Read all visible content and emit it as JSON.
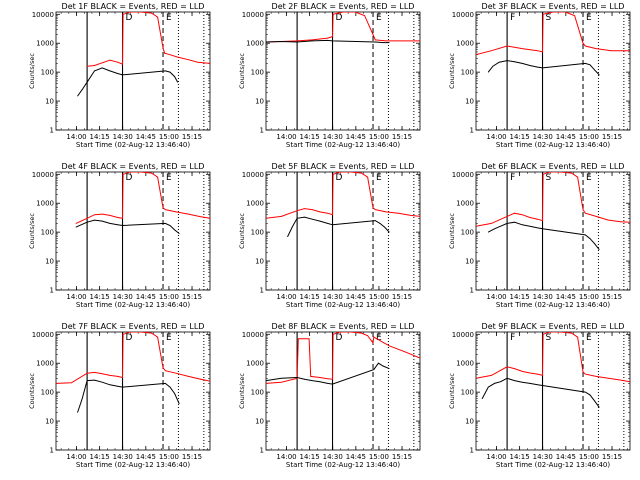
{
  "figure": {
    "xlabel": "Start Time (02-Aug-12 13:46:40)",
    "ylabel": "Counts/sec",
    "x_tick_labels": [
      "14:00",
      "14:15",
      "14:30",
      "14:45",
      "15:00",
      "15:15"
    ],
    "y_tick_labels": [
      "1",
      "10",
      "100",
      "1000",
      "10000"
    ],
    "series_colors": {
      "Events": "#000000",
      "LLD": "#ff0000"
    },
    "legend_note": "BLACK = Events, RED = LLD"
  },
  "chart_data": [
    {
      "type": "line",
      "title": "Det 1F BLACK = Events, RED = LLD",
      "interval_labels": [
        "D",
        "E"
      ],
      "solid_lines_min": [
        20.2,
        43.2
      ],
      "dashed_lines_min": [
        69.5
      ],
      "dotted_lines_min": [
        79.5,
        96.0
      ],
      "xlim_min": [
        0,
        100
      ],
      "ylim": [
        1,
        12000
      ],
      "yscale": "log",
      "series": [
        {
          "name": "LLD",
          "color": "#ff0000",
          "x": [
            20.2,
            25,
            30,
            35,
            40,
            43.2,
            43.6,
            48,
            55,
            62,
            66,
            69.5,
            70.5,
            74,
            79,
            86,
            92,
            100
          ],
          "y": [
            160,
            170,
            210,
            260,
            220,
            190,
            10000,
            12000,
            12000,
            11000,
            8000,
            700,
            450,
            400,
            330,
            270,
            220,
            200
          ]
        },
        {
          "name": "Events",
          "color": "#000000",
          "x": [
            14,
            17,
            20.2,
            25,
            30,
            35,
            40,
            43.2,
            71,
            74,
            77,
            79
          ],
          "y": [
            15,
            25,
            45,
            110,
            140,
            110,
            90,
            80,
            110,
            100,
            70,
            45
          ]
        }
      ]
    },
    {
      "type": "line",
      "title": "Det 2F BLACK = Events, RED = LLD",
      "interval_labels": [
        "D",
        "E"
      ],
      "solid_lines_min": [
        20.2,
        43.2
      ],
      "dashed_lines_min": [
        69.5
      ],
      "dotted_lines_min": [
        79.5,
        96.0
      ],
      "xlim_min": [
        0,
        100
      ],
      "ylim": [
        1,
        12000
      ],
      "yscale": "log",
      "series": [
        {
          "name": "LLD",
          "color": "#ff0000",
          "x": [
            0,
            10,
            20.2,
            30,
            40,
            43.2,
            43.6,
            50,
            58,
            64,
            69.5,
            71,
            78,
            88,
            100
          ],
          "y": [
            1100,
            1150,
            1200,
            1300,
            1500,
            1700,
            10000,
            12000,
            12000,
            9000,
            2000,
            1300,
            1200,
            1200,
            1200
          ]
        },
        {
          "name": "Events",
          "color": "#000000",
          "x": [
            0,
            10,
            20.2,
            30,
            40,
            43.2,
            71,
            76,
            80
          ],
          "y": [
            1100,
            1150,
            1100,
            1200,
            1250,
            1200,
            1100,
            1050,
            1050
          ]
        }
      ]
    },
    {
      "type": "line",
      "title": "Det 3F BLACK = Events, RED = LLD",
      "interval_labels": [
        "F",
        "S",
        "E"
      ],
      "solid_lines_min": [
        20.2,
        43.2
      ],
      "dashed_lines_min": [
        69.5
      ],
      "dotted_lines_min": [
        79.5,
        96.0
      ],
      "xlim_min": [
        0,
        100
      ],
      "ylim": [
        1,
        12000
      ],
      "yscale": "log",
      "series": [
        {
          "name": "LLD",
          "color": "#ff0000",
          "x": [
            0,
            10,
            20.2,
            30,
            40,
            43.2,
            43.6,
            50,
            58,
            64,
            69.5,
            71,
            78,
            88,
            100
          ],
          "y": [
            400,
            550,
            800,
            650,
            550,
            500,
            10000,
            12000,
            12000,
            9000,
            1000,
            800,
            650,
            550,
            550
          ]
        },
        {
          "name": "Events",
          "color": "#000000",
          "x": [
            8,
            11,
            15,
            20.2,
            25,
            30,
            35,
            40,
            43.2,
            71,
            74,
            77,
            80
          ],
          "y": [
            100,
            160,
            220,
            250,
            230,
            200,
            170,
            150,
            140,
            200,
            180,
            120,
            80
          ]
        }
      ]
    },
    {
      "type": "line",
      "title": "Det 4F BLACK = Events, RED = LLD",
      "interval_labels": [
        "D",
        "E"
      ],
      "solid_lines_min": [
        20.2,
        43.2
      ],
      "dashed_lines_min": [
        69.5
      ],
      "dotted_lines_min": [
        79.5,
        96.0
      ],
      "xlim_min": [
        0,
        100
      ],
      "ylim": [
        1,
        12000
      ],
      "yscale": "log",
      "series": [
        {
          "name": "LLD",
          "color": "#ff0000",
          "x": [
            13,
            20.2,
            25,
            30,
            35,
            40,
            43.2,
            43.6,
            48,
            55,
            62,
            66,
            69.5,
            71,
            78,
            86,
            94,
            100
          ],
          "y": [
            200,
            300,
            400,
            420,
            380,
            320,
            300,
            10000,
            12000,
            12000,
            11000,
            8000,
            700,
            600,
            500,
            420,
            340,
            300
          ]
        },
        {
          "name": "Events",
          "color": "#000000",
          "x": [
            13,
            20.2,
            25,
            30,
            35,
            40,
            43.2,
            71,
            74,
            77,
            80
          ],
          "y": [
            150,
            220,
            260,
            240,
            200,
            180,
            170,
            200,
            170,
            120,
            90
          ]
        }
      ]
    },
    {
      "type": "line",
      "title": "Det 5F BLACK = Events, RED = LLD",
      "interval_labels": [
        "D",
        "E"
      ],
      "solid_lines_min": [
        20.2,
        43.2
      ],
      "dashed_lines_min": [
        69.5
      ],
      "dotted_lines_min": [
        79.5,
        96.0
      ],
      "xlim_min": [
        0,
        100
      ],
      "ylim": [
        1,
        12000
      ],
      "yscale": "log",
      "series": [
        {
          "name": "LLD",
          "color": "#ff0000",
          "x": [
            0,
            10,
            20.2,
            25,
            30,
            35,
            40,
            43.2,
            43.6,
            48,
            55,
            62,
            66,
            69.5,
            71,
            78,
            86,
            94,
            100
          ],
          "y": [
            300,
            350,
            550,
            650,
            600,
            500,
            450,
            400,
            10000,
            12000,
            12000,
            11000,
            8000,
            700,
            600,
            500,
            450,
            380,
            350
          ]
        },
        {
          "name": "Events",
          "color": "#000000",
          "x": [
            14,
            17,
            20.2,
            25,
            30,
            35,
            40,
            43.2,
            71,
            74,
            77,
            80
          ],
          "y": [
            70,
            150,
            300,
            330,
            280,
            240,
            200,
            180,
            250,
            200,
            150,
            100
          ]
        }
      ]
    },
    {
      "type": "line",
      "title": "Det 6F BLACK = Events, RED = LLD",
      "interval_labels": [
        "F",
        "S",
        "E"
      ],
      "solid_lines_min": [
        20.2,
        43.2
      ],
      "dashed_lines_min": [
        69.5
      ],
      "dotted_lines_min": [
        79.5,
        96.0
      ],
      "xlim_min": [
        0,
        100
      ],
      "ylim": [
        1,
        12000
      ],
      "yscale": "log",
      "series": [
        {
          "name": "LLD",
          "color": "#ff0000",
          "x": [
            0,
            10,
            20.2,
            25,
            30,
            35,
            40,
            43.2,
            43.6,
            48,
            55,
            62,
            66,
            69.5,
            71,
            78,
            86,
            94,
            100
          ],
          "y": [
            160,
            200,
            350,
            450,
            400,
            320,
            280,
            250,
            10000,
            12000,
            12000,
            11000,
            8000,
            600,
            450,
            350,
            260,
            230,
            220
          ]
        },
        {
          "name": "Events",
          "color": "#000000",
          "x": [
            8,
            12,
            16,
            20.2,
            25,
            30,
            35,
            40,
            43.2,
            71,
            74,
            77,
            80
          ],
          "y": [
            100,
            130,
            160,
            200,
            220,
            180,
            160,
            140,
            130,
            80,
            60,
            40,
            25
          ]
        }
      ]
    },
    {
      "type": "line",
      "title": "Det 7F BLACK = Events, RED = LLD",
      "interval_labels": [
        "D",
        "E"
      ],
      "solid_lines_min": [
        20.2,
        43.2
      ],
      "dashed_lines_min": [
        69.5
      ],
      "dotted_lines_min": [
        79.5,
        96.0
      ],
      "xlim_min": [
        0,
        100
      ],
      "ylim": [
        1,
        12000
      ],
      "yscale": "log",
      "series": [
        {
          "name": "LLD",
          "color": "#ff0000",
          "x": [
            0,
            10,
            20.2,
            25,
            30,
            35,
            40,
            43.2,
            43.6,
            48,
            55,
            62,
            66,
            69.5,
            71,
            78,
            86,
            94,
            100
          ],
          "y": [
            200,
            210,
            450,
            480,
            430,
            380,
            350,
            320,
            10000,
            12000,
            12000,
            11000,
            8000,
            700,
            550,
            450,
            350,
            280,
            240
          ]
        },
        {
          "name": "Events",
          "color": "#000000",
          "x": [
            14,
            17,
            20.2,
            25,
            30,
            35,
            40,
            43.2,
            71,
            74,
            77,
            80
          ],
          "y": [
            20,
            60,
            250,
            260,
            220,
            180,
            160,
            150,
            200,
            150,
            90,
            40
          ]
        }
      ]
    },
    {
      "type": "line",
      "title": "Det 8F BLACK = Events, RED = LLD",
      "interval_labels": [
        "D",
        "E"
      ],
      "solid_lines_min": [
        20.2,
        43.2
      ],
      "dashed_lines_min": [
        69.5
      ],
      "dotted_lines_min": [
        79.5,
        96.0
      ],
      "xlim_min": [
        0,
        100
      ],
      "ylim": [
        1,
        12000
      ],
      "yscale": "log",
      "series": [
        {
          "name": "LLD",
          "color": "#ff0000",
          "x": [
            0,
            10,
            20.2,
            21,
            28,
            29,
            35,
            40,
            43.2,
            43.6,
            48,
            55,
            62,
            66,
            69.5,
            70,
            80,
            90,
            100
          ],
          "y": [
            200,
            220,
            300,
            7000,
            7000,
            350,
            320,
            290,
            280,
            10000,
            12000,
            12000,
            11000,
            9000,
            5000,
            8000,
            4000,
            2500,
            1500
          ]
        },
        {
          "name": "Events",
          "color": "#000000",
          "x": [
            0,
            10,
            20.2,
            25,
            30,
            35,
            40,
            43.2,
            70,
            73,
            76,
            80
          ],
          "y": [
            250,
            300,
            320,
            280,
            250,
            230,
            200,
            190,
            600,
            1000,
            800,
            650
          ]
        }
      ]
    },
    {
      "type": "line",
      "title": "Det 9F BLACK = Events, RED = LLD",
      "interval_labels": [
        "F",
        "S",
        "E"
      ],
      "solid_lines_min": [
        20.2,
        43.2
      ],
      "dashed_lines_min": [
        69.5
      ],
      "dotted_lines_min": [
        79.5,
        96.0
      ],
      "xlim_min": [
        0,
        100
      ],
      "ylim": [
        1,
        12000
      ],
      "yscale": "log",
      "series": [
        {
          "name": "LLD",
          "color": "#ff0000",
          "x": [
            0,
            10,
            20.2,
            25,
            30,
            35,
            40,
            43.2,
            43.6,
            48,
            55,
            62,
            66,
            69.5,
            71,
            78,
            86,
            94,
            100
          ],
          "y": [
            300,
            380,
            750,
            650,
            520,
            460,
            420,
            380,
            10000,
            12000,
            12000,
            11000,
            8000,
            500,
            420,
            350,
            300,
            260,
            230
          ]
        },
        {
          "name": "Events",
          "color": "#000000",
          "x": [
            4,
            8,
            12,
            16,
            20.2,
            25,
            30,
            35,
            40,
            43.2,
            71,
            74,
            77,
            80
          ],
          "y": [
            60,
            150,
            200,
            230,
            300,
            250,
            220,
            200,
            180,
            170,
            100,
            80,
            50,
            30
          ]
        }
      ]
    }
  ]
}
